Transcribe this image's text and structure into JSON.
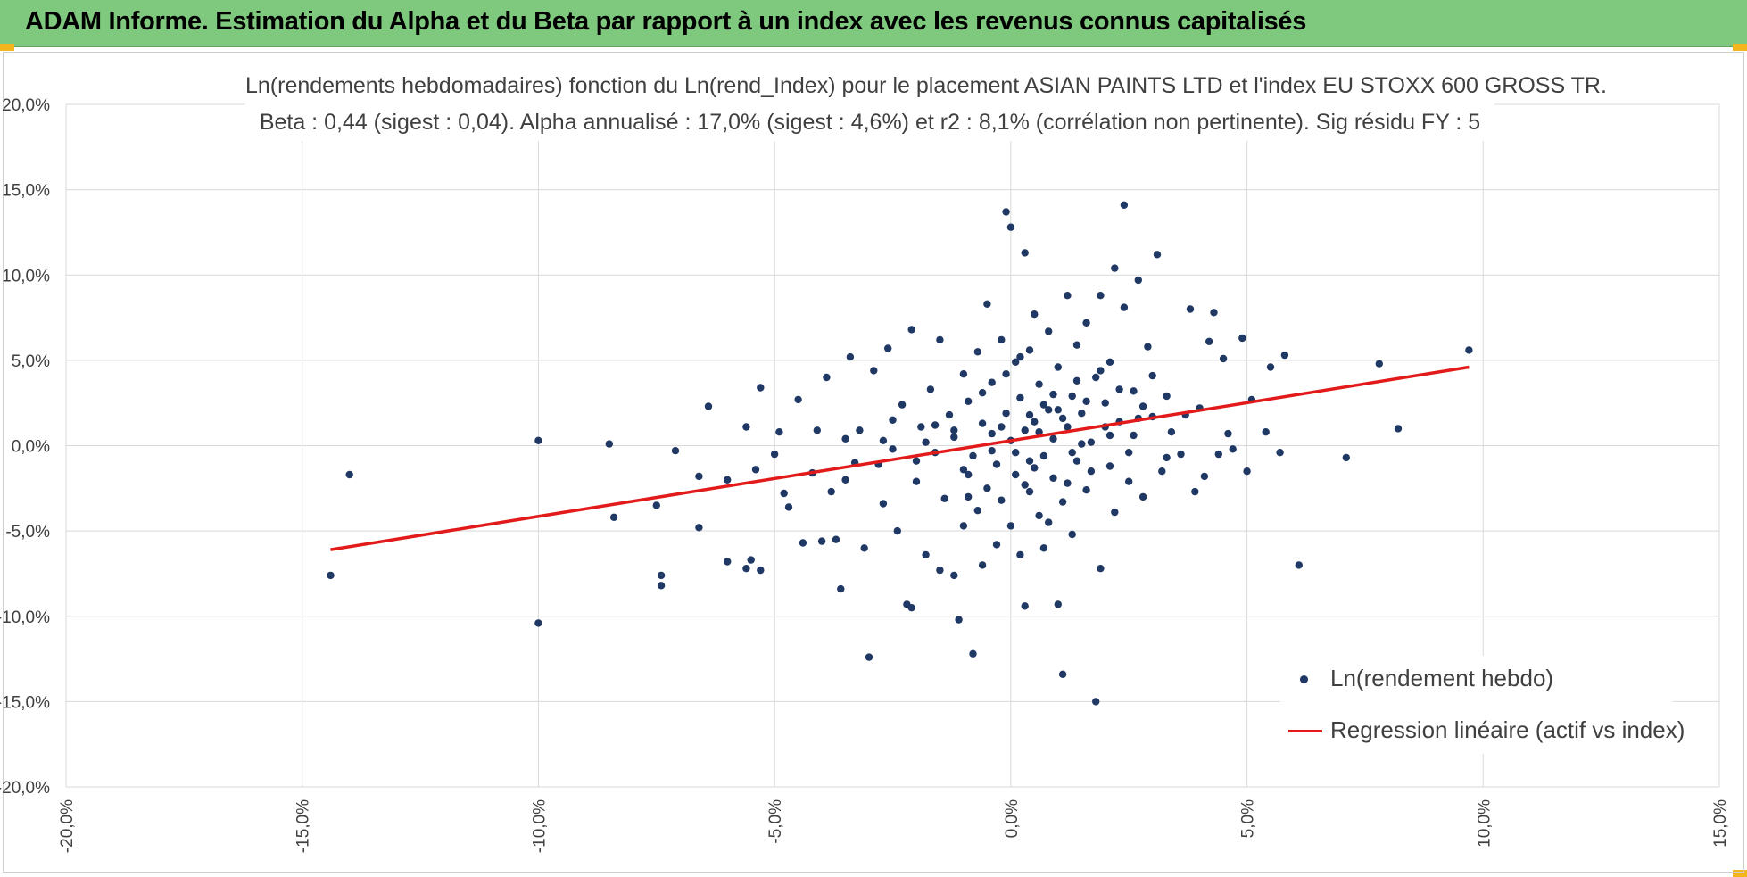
{
  "header": {
    "title": "ADAM Informe. Estimation du Alpha et du Beta par rapport à un index avec les revenus connus capitalisés",
    "background_color": "#7fc97f",
    "corner_color": "#f2b61c"
  },
  "chart_data": {
    "type": "scatter",
    "title_line1": "Ln(rendements hebdomadaires) fonction du Ln(rend_Index) pour le placement ASIAN PAINTS LTD et l'index EU STOXX 600 GROSS TR.",
    "title_line2": "Beta : 0,44 (sigest : 0,04).  Alpha annualisé : 17,0% (sigest : 4,6%) et r2 : 8,1% (corrélation non pertinente). Sig résidu FY : 5",
    "xlabel": "",
    "ylabel": "",
    "xlim": [
      -0.2,
      0.15
    ],
    "ylim": [
      -0.2,
      0.2
    ],
    "x_ticks": [
      -0.2,
      -0.15,
      -0.1,
      -0.05,
      0.0,
      0.05,
      0.1,
      0.15
    ],
    "y_ticks": [
      -0.2,
      -0.15,
      -0.1,
      -0.05,
      0.0,
      0.05,
      0.1,
      0.15,
      0.2
    ],
    "x_tick_labels": [
      "-20,0%",
      "-15,0%",
      "-10,0%",
      "-5,0%",
      "0,0%",
      "5,0%",
      "10,0%",
      "15,0%"
    ],
    "y_tick_labels": [
      "-20,0%",
      "-15,0%",
      "-10,0%",
      "-5,0%",
      "0,0%",
      "5,0%",
      "10,0%",
      "15,0%",
      "20,0%"
    ],
    "grid": true,
    "legend_position": "bottom-right",
    "colors": {
      "points": "#203864",
      "regression": "#e31a1a",
      "grid": "#d9d9d9"
    },
    "series": [
      {
        "name": "Ln(rendement hebdo)",
        "kind": "scatter",
        "points": [
          [
            -0.144,
            -0.076
          ],
          [
            -0.14,
            -0.017
          ],
          [
            -0.1,
            0.003
          ],
          [
            -0.1,
            -0.104
          ],
          [
            -0.085,
            0.001
          ],
          [
            -0.084,
            -0.042
          ],
          [
            -0.075,
            -0.035
          ],
          [
            -0.074,
            -0.076
          ],
          [
            -0.074,
            -0.082
          ],
          [
            -0.071,
            -0.003
          ],
          [
            -0.066,
            -0.048
          ],
          [
            -0.066,
            -0.018
          ],
          [
            -0.064,
            0.023
          ],
          [
            -0.06,
            -0.068
          ],
          [
            -0.06,
            -0.02
          ],
          [
            -0.056,
            0.011
          ],
          [
            -0.056,
            -0.072
          ],
          [
            -0.055,
            -0.067
          ],
          [
            -0.054,
            -0.014
          ],
          [
            -0.053,
            0.034
          ],
          [
            -0.053,
            -0.073
          ],
          [
            -0.05,
            -0.005
          ],
          [
            -0.049,
            0.008
          ],
          [
            -0.048,
            -0.028
          ],
          [
            -0.047,
            -0.036
          ],
          [
            -0.045,
            0.027
          ],
          [
            -0.044,
            -0.057
          ],
          [
            -0.042,
            -0.016
          ],
          [
            -0.041,
            0.009
          ],
          [
            -0.04,
            -0.056
          ],
          [
            -0.039,
            0.04
          ],
          [
            -0.038,
            -0.027
          ],
          [
            -0.037,
            -0.055
          ],
          [
            -0.036,
            -0.084
          ],
          [
            -0.035,
            -0.02
          ],
          [
            -0.034,
            0.052
          ],
          [
            -0.033,
            -0.01
          ],
          [
            -0.032,
            0.009
          ],
          [
            -0.031,
            -0.06
          ],
          [
            -0.03,
            -0.124
          ],
          [
            -0.029,
            0.044
          ],
          [
            -0.028,
            -0.011
          ],
          [
            -0.027,
            -0.034
          ],
          [
            -0.026,
            0.057
          ],
          [
            -0.025,
            0.015
          ],
          [
            -0.024,
            -0.05
          ],
          [
            -0.023,
            0.024
          ],
          [
            -0.022,
            -0.093
          ],
          [
            -0.021,
            0.068
          ],
          [
            -0.021,
            -0.095
          ],
          [
            -0.02,
            -0.021
          ],
          [
            -0.019,
            0.011
          ],
          [
            -0.018,
            -0.064
          ],
          [
            -0.017,
            0.033
          ],
          [
            -0.016,
            -0.004
          ],
          [
            -0.015,
            0.062
          ],
          [
            -0.015,
            -0.073
          ],
          [
            -0.014,
            -0.031
          ],
          [
            -0.013,
            0.018
          ],
          [
            -0.012,
            -0.076
          ],
          [
            -0.012,
            0.005
          ],
          [
            -0.011,
            -0.102
          ],
          [
            -0.01,
            0.042
          ],
          [
            -0.01,
            -0.047
          ],
          [
            -0.009,
            -0.017
          ],
          [
            -0.009,
            0.026
          ],
          [
            -0.008,
            -0.122
          ],
          [
            -0.008,
            -0.006
          ],
          [
            -0.007,
            0.055
          ],
          [
            -0.007,
            -0.038
          ],
          [
            -0.006,
            0.013
          ],
          [
            -0.006,
            -0.07
          ],
          [
            -0.005,
            0.083
          ],
          [
            -0.005,
            -0.025
          ],
          [
            -0.004,
            0.007
          ],
          [
            -0.004,
            0.037
          ],
          [
            -0.003,
            -0.058
          ],
          [
            -0.003,
            -0.011
          ],
          [
            -0.002,
            0.062
          ],
          [
            -0.002,
            -0.032
          ],
          [
            -0.001,
            0.137
          ],
          [
            -0.001,
            0.019
          ],
          [
            0.0,
            -0.047
          ],
          [
            0.0,
            0.128
          ],
          [
            0.0,
            0.003
          ],
          [
            0.001,
            0.049
          ],
          [
            0.001,
            -0.017
          ],
          [
            0.002,
            0.028
          ],
          [
            0.002,
            -0.064
          ],
          [
            0.003,
            0.113
          ],
          [
            0.003,
            0.009
          ],
          [
            0.003,
            -0.094
          ],
          [
            0.004,
            0.056
          ],
          [
            0.004,
            -0.027
          ],
          [
            0.005,
            0.014
          ],
          [
            0.005,
            0.077
          ],
          [
            0.006,
            -0.041
          ],
          [
            0.006,
            0.036
          ],
          [
            0.007,
            -0.006
          ],
          [
            0.007,
            -0.06
          ],
          [
            0.008,
            0.021
          ],
          [
            0.008,
            0.067
          ],
          [
            0.009,
            -0.019
          ],
          [
            0.009,
            0.004
          ],
          [
            0.01,
            -0.093
          ],
          [
            0.01,
            0.046
          ],
          [
            0.011,
            -0.134
          ],
          [
            0.011,
            -0.033
          ],
          [
            0.012,
            0.088
          ],
          [
            0.012,
            0.011
          ],
          [
            0.013,
            0.029
          ],
          [
            0.013,
            -0.052
          ],
          [
            0.014,
            0.059
          ],
          [
            0.014,
            -0.009
          ],
          [
            0.015,
            0.019
          ],
          [
            0.016,
            0.072
          ],
          [
            0.016,
            -0.026
          ],
          [
            0.017,
            0.002
          ],
          [
            0.018,
            0.04
          ],
          [
            0.018,
            -0.15
          ],
          [
            0.019,
            0.088
          ],
          [
            0.019,
            -0.072
          ],
          [
            0.02,
            0.025
          ],
          [
            0.021,
            -0.012
          ],
          [
            0.021,
            0.049
          ],
          [
            0.022,
            0.104
          ],
          [
            0.022,
            -0.039
          ],
          [
            0.023,
            0.014
          ],
          [
            0.024,
            0.081
          ],
          [
            0.024,
            0.141
          ],
          [
            0.025,
            -0.021
          ],
          [
            0.026,
            0.032
          ],
          [
            0.026,
            0.006
          ],
          [
            0.027,
            0.097
          ],
          [
            0.028,
            -0.03
          ],
          [
            0.029,
            0.058
          ],
          [
            0.03,
            0.017
          ],
          [
            0.031,
            0.112
          ],
          [
            0.032,
            -0.015
          ],
          [
            0.033,
            0.029
          ],
          [
            0.034,
            0.008
          ],
          [
            0.036,
            -0.005
          ],
          [
            0.037,
            0.018
          ],
          [
            0.038,
            0.08
          ],
          [
            0.039,
            -0.027
          ],
          [
            0.04,
            0.022
          ],
          [
            0.041,
            -0.018
          ],
          [
            0.042,
            0.061
          ],
          [
            0.043,
            0.078
          ],
          [
            0.044,
            -0.005
          ],
          [
            0.045,
            0.051
          ],
          [
            0.046,
            0.007
          ],
          [
            0.047,
            -0.002
          ],
          [
            0.049,
            0.063
          ],
          [
            0.05,
            -0.015
          ],
          [
            0.051,
            0.027
          ],
          [
            0.054,
            0.008
          ],
          [
            0.055,
            0.046
          ],
          [
            0.057,
            -0.004
          ],
          [
            0.058,
            0.053
          ],
          [
            0.061,
            -0.07
          ],
          [
            0.071,
            -0.007
          ],
          [
            0.078,
            0.048
          ],
          [
            0.082,
            0.01
          ],
          [
            0.097,
            0.056
          ],
          [
            -0.035,
            0.004
          ],
          [
            -0.025,
            -0.002
          ],
          [
            -0.018,
            0.002
          ],
          [
            -0.012,
            0.009
          ],
          [
            -0.004,
            -0.003
          ],
          [
            0.004,
            0.018
          ],
          [
            0.01,
            0.021
          ],
          [
            0.015,
            0.001
          ],
          [
            0.02,
            0.011
          ],
          [
            0.027,
            0.016
          ],
          [
            0.033,
            -0.007
          ],
          [
            0.004,
            -0.009
          ],
          [
            0.009,
            0.03
          ],
          [
            0.012,
            -0.022
          ],
          [
            0.006,
            0.008
          ],
          [
            -0.002,
            0.011
          ],
          [
            0.001,
            -0.004
          ],
          [
            0.017,
            -0.015
          ],
          [
            0.023,
            0.033
          ],
          [
            0.014,
            0.038
          ],
          [
            -0.016,
            0.012
          ],
          [
            -0.01,
            -0.014
          ],
          [
            0.002,
            0.052
          ],
          [
            0.008,
            -0.045
          ],
          [
            0.019,
            0.044
          ],
          [
            0.025,
            -0.004
          ],
          [
            0.03,
            0.041
          ],
          [
            -0.006,
            0.031
          ],
          [
            0.011,
            0.016
          ],
          [
            0.016,
            0.026
          ],
          [
            -0.02,
            -0.009
          ],
          [
            -0.027,
            0.003
          ],
          [
            0.003,
            -0.023
          ],
          [
            0.013,
            -0.004
          ],
          [
            0.007,
            0.024
          ],
          [
            -0.001,
            0.042
          ],
          [
            0.021,
            0.006
          ],
          [
            0.028,
            0.023
          ],
          [
            -0.009,
            -0.03
          ],
          [
            0.005,
            -0.013
          ]
        ]
      },
      {
        "name": "Regression linéaire (actif vs index)",
        "kind": "line",
        "points": [
          [
            -0.144,
            -0.061
          ],
          [
            0.097,
            0.046
          ]
        ]
      }
    ]
  }
}
